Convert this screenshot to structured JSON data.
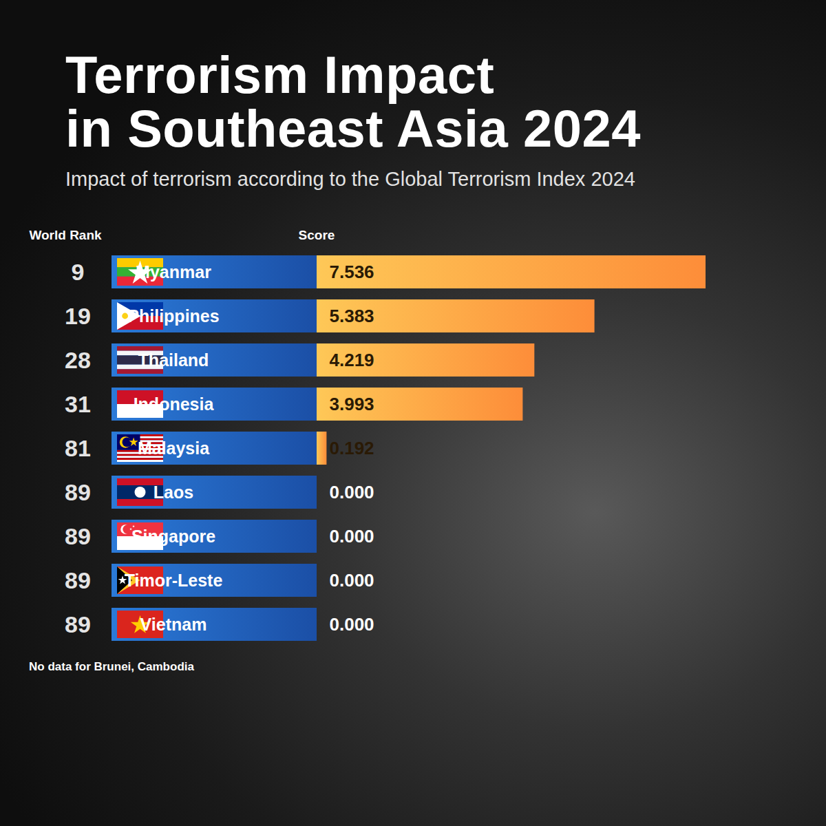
{
  "chart_data": {
    "type": "bar",
    "orientation": "horizontal",
    "title": "Terrorism Impact\nin Southeast Asia 2024",
    "subtitle": "Impact of terrorism according to the Global Terrorism Index 2024",
    "rank_header": "World Rank",
    "value_header": "Score",
    "categories": [
      "Myanmar",
      "Philippines",
      "Thailand",
      "Indonesia",
      "Malaysia",
      "Laos",
      "Singapore",
      "Timor-Leste",
      "Vietnam"
    ],
    "ranks": [
      9,
      19,
      28,
      31,
      81,
      89,
      89,
      89,
      89
    ],
    "values": [
      7.536,
      5.383,
      4.219,
      3.993,
      0.192,
      0,
      0,
      0,
      0
    ],
    "value_labels": [
      "7.536",
      "5.383",
      "4.219",
      "3.993",
      "0.192",
      "0.000",
      "0.000",
      "0.000",
      "0.000"
    ],
    "note": "No data for Brunei, Cambodia",
    "color": "#fcaa45",
    "xlim": [
      0,
      7.536
    ],
    "data_labels": true,
    "tick_labels": false
  }
}
